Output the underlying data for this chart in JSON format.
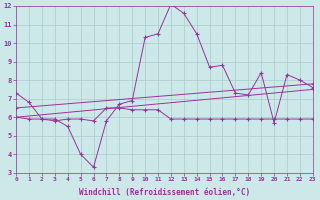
{
  "xlabel": "Windchill (Refroidissement éolien,°C)",
  "background_color": "#cce8e8",
  "grid_color": "#aacccc",
  "line_color": "#993399",
  "x": [
    0,
    1,
    2,
    3,
    4,
    5,
    6,
    7,
    8,
    9,
    10,
    11,
    12,
    13,
    14,
    15,
    16,
    17,
    18,
    19,
    20,
    21,
    22,
    23
  ],
  "series1": [
    7.3,
    6.8,
    5.9,
    5.9,
    5.5,
    4.0,
    3.3,
    5.8,
    6.7,
    6.9,
    10.3,
    10.5,
    12.1,
    11.6,
    10.5,
    8.7,
    8.8,
    7.3,
    7.2,
    8.4,
    5.7,
    8.3,
    8.0,
    7.6
  ],
  "series2": [
    6.0,
    5.9,
    5.9,
    5.8,
    5.9,
    5.9,
    5.8,
    6.5,
    6.5,
    6.4,
    6.4,
    6.4,
    5.9,
    5.9,
    5.9,
    5.9,
    5.9,
    5.9,
    5.9,
    5.9,
    5.9,
    5.9,
    5.9,
    5.9
  ],
  "series3_x": [
    0,
    23
  ],
  "series3_y": [
    6.5,
    7.8
  ],
  "series4_x": [
    0,
    23
  ],
  "series4_y": [
    6.0,
    7.5
  ],
  "ylim_min": 3,
  "ylim_max": 12,
  "xlim_min": 0,
  "xlim_max": 23,
  "yticks": [
    3,
    4,
    5,
    6,
    7,
    8,
    9,
    10,
    11,
    12
  ],
  "xticks": [
    0,
    1,
    2,
    3,
    4,
    5,
    6,
    7,
    8,
    9,
    10,
    11,
    12,
    13,
    14,
    15,
    16,
    17,
    18,
    19,
    20,
    21,
    22,
    23
  ]
}
